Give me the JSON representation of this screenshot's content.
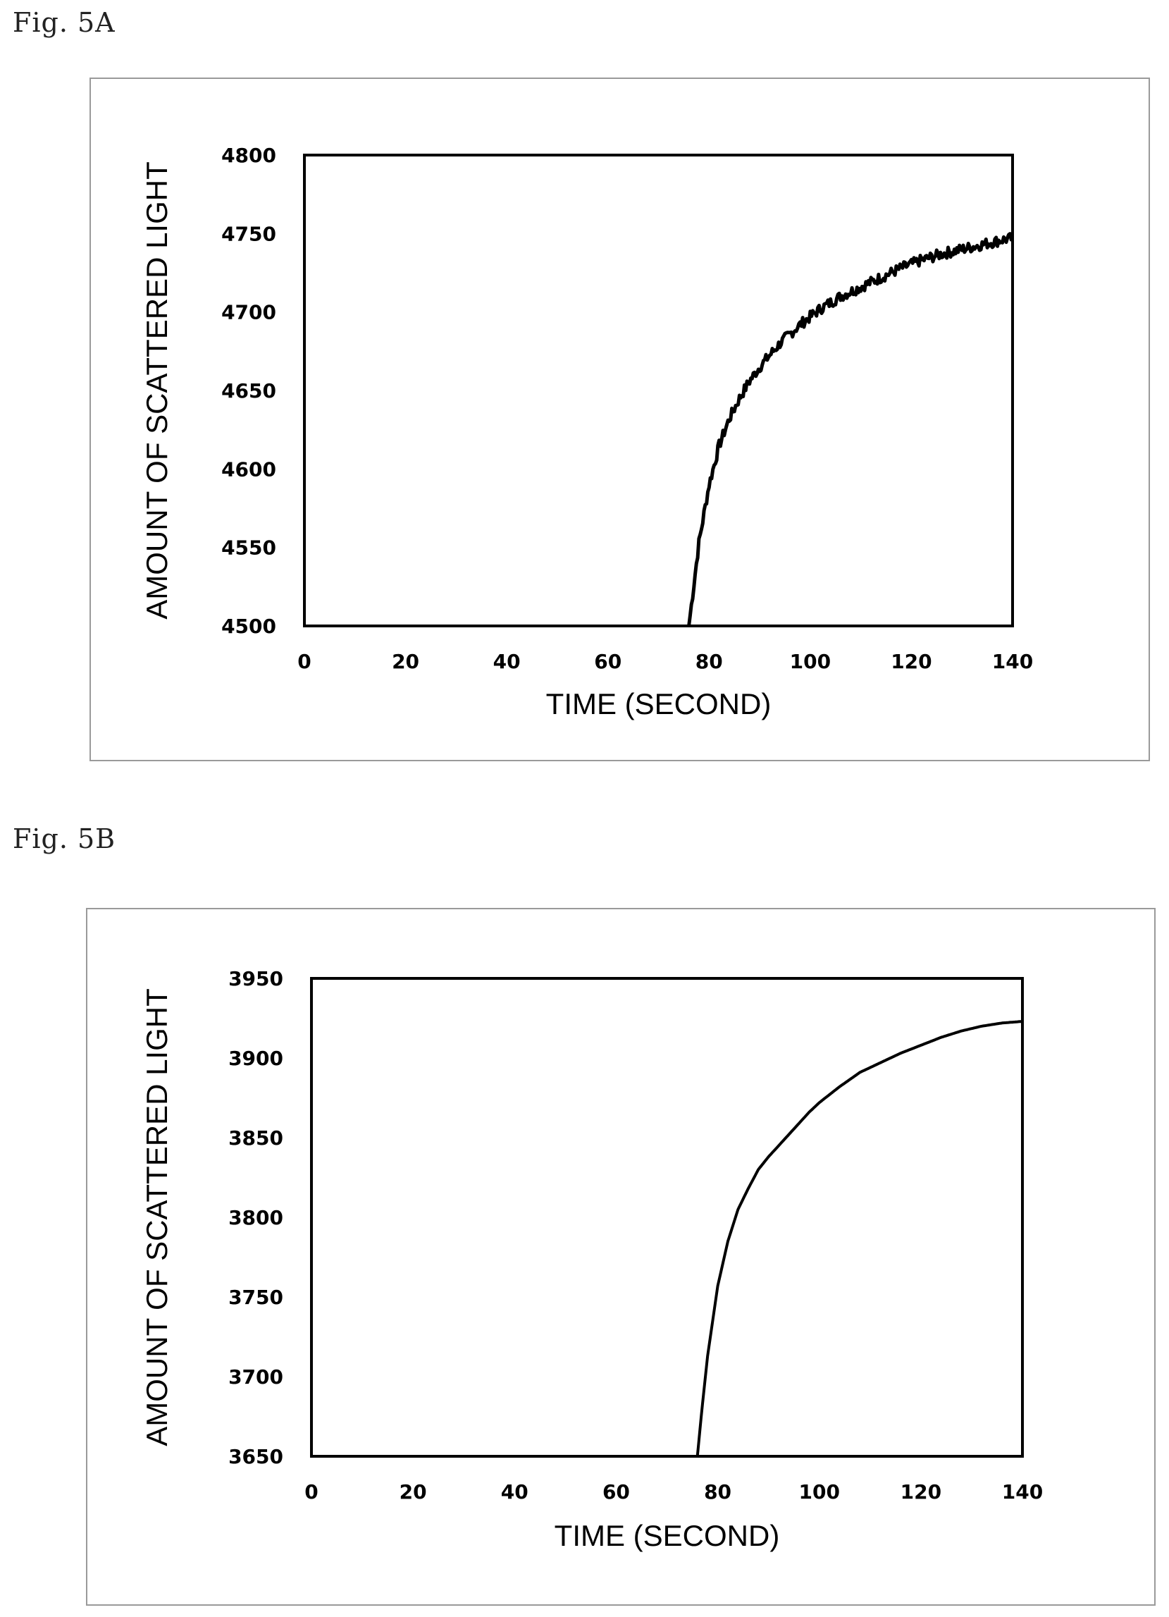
{
  "figures": [
    {
      "label": "Fig. 5A",
      "chart_data": {
        "type": "line",
        "title": "",
        "xlabel": "TIME (SECOND)",
        "ylabel": "AMOUNT OF SCATTERED LIGHT",
        "xlim": [
          0,
          140
        ],
        "ylim": [
          4500,
          4800
        ],
        "xticks": [
          0,
          20,
          40,
          60,
          80,
          100,
          120,
          140
        ],
        "yticks": [
          4500,
          4550,
          4600,
          4650,
          4700,
          4750,
          4800
        ],
        "grid": false,
        "noisy": true,
        "series": [
          {
            "x": [
              76,
              78,
              80,
              82,
              84,
              86,
              88,
              90,
              94,
              98,
              102,
              106,
              110,
              114,
              118,
              122,
              126,
              130,
              134,
              138,
              140
            ],
            "y": [
              4500,
              4553,
              4590,
              4615,
              4632,
              4645,
              4656,
              4665,
              4680,
              4692,
              4702,
              4710,
              4716,
              4722,
              4728,
              4733,
              4737,
              4740,
              4743,
              4746,
              4747
            ]
          }
        ]
      }
    },
    {
      "label": "Fig. 5B",
      "chart_data": {
        "type": "line",
        "title": "",
        "xlabel": "TIME (SECOND)",
        "ylabel": "AMOUNT OF SCATTERED LIGHT",
        "xlim": [
          0,
          140
        ],
        "ylim": [
          3650,
          3950
        ],
        "xticks": [
          0,
          20,
          40,
          60,
          80,
          100,
          120,
          140
        ],
        "yticks": [
          3650,
          3700,
          3750,
          3800,
          3850,
          3900,
          3950
        ],
        "grid": false,
        "noisy": false,
        "series": [
          {
            "x": [
              76,
              77,
              78,
              80,
              82,
              84,
              86,
              88,
              90,
              94,
              98,
              100,
              104,
              108,
              112,
              116,
              120,
              124,
              128,
              132,
              136,
              140
            ],
            "y": [
              3650,
              3683,
              3713,
              3757,
              3785,
              3805,
              3818,
              3830,
              3838,
              3852,
              3866,
              3872,
              3882,
              3891,
              3897,
              3903,
              3908,
              3913,
              3917,
              3920,
              3922,
              3923
            ]
          }
        ]
      }
    }
  ]
}
